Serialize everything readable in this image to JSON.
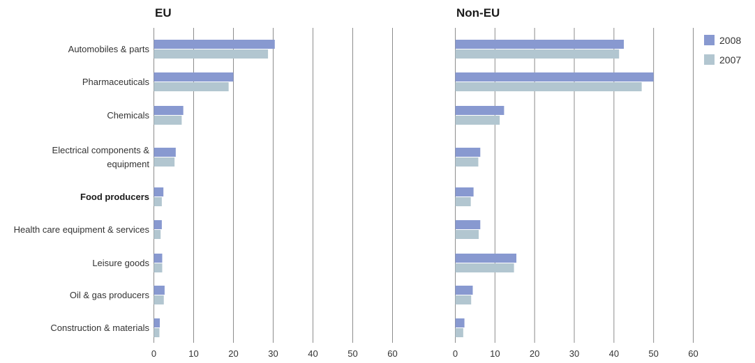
{
  "chart_data": {
    "type": "bar",
    "orientation": "horizontal",
    "categories": [
      "Automobiles & parts",
      "Pharmaceuticals",
      "Chemicals",
      "Electrical components & equipment",
      "Food producers",
      "Health care equipment & services",
      "Leisure goods",
      "Oil & gas producers",
      "Construction & materials"
    ],
    "highlighted_category": "Food producers",
    "legend": {
      "position": "top-right",
      "entries": [
        "2008",
        "2007"
      ]
    },
    "colors": {
      "2008": "#8899d0",
      "2007": "#b2c6d0"
    },
    "panels": [
      {
        "title": "EU",
        "xlim": [
          0,
          60
        ],
        "xticks": [
          0,
          10,
          20,
          30,
          40,
          50,
          60
        ],
        "grid": true,
        "series": [
          {
            "name": "2008",
            "values": [
              30.4,
              20.0,
              7.4,
              5.5,
              2.4,
              2.0,
              2.1,
              2.7,
              1.5
            ]
          },
          {
            "name": "2007",
            "values": [
              28.7,
              18.8,
              7.0,
              5.2,
              2.0,
              1.7,
              2.1,
              2.5,
              1.4
            ]
          }
        ]
      },
      {
        "title": "Non-EU",
        "xlim": [
          0,
          60
        ],
        "xticks": [
          0,
          10,
          20,
          30,
          40,
          50,
          60
        ],
        "grid": true,
        "series": [
          {
            "name": "2008",
            "values": [
              42.5,
              50.0,
              12.3,
              6.3,
              4.6,
              6.3,
              15.4,
              4.4,
              2.3
            ]
          },
          {
            "name": "2007",
            "values": [
              41.3,
              47.0,
              11.2,
              5.8,
              3.9,
              5.9,
              14.8,
              4.0,
              2.0
            ]
          }
        ]
      }
    ]
  }
}
